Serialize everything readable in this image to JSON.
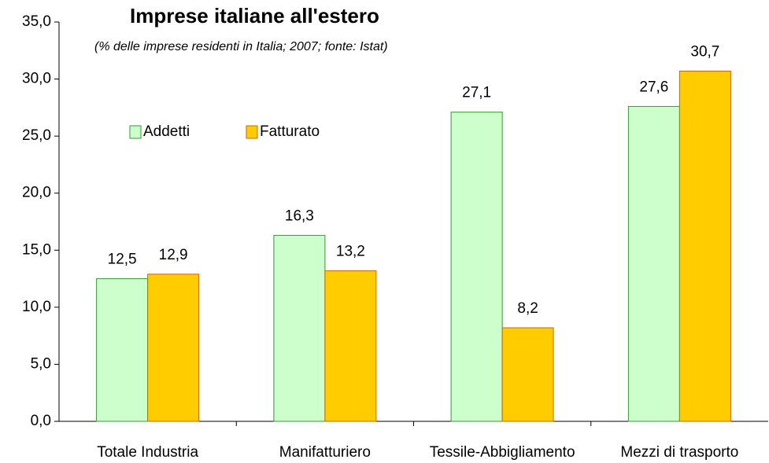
{
  "chart_data": {
    "type": "bar",
    "title": "Imprese italiane all'estero",
    "subtitle": "(% delle imprese residenti in Italia; 2007; fonte: Istat)",
    "categories": [
      "Totale Industria",
      "Manifatturiero",
      "Tessile-Abbigliamento",
      "Mezzi di trasporto"
    ],
    "series": [
      {
        "name": "Addetti",
        "color": "#ccffcc",
        "values": [
          12.5,
          16.3,
          27.1,
          27.6
        ],
        "value_labels": [
          "12,5",
          "16,3",
          "27,1",
          "27,6"
        ]
      },
      {
        "name": "Fatturato",
        "color": "#ffcc00",
        "values": [
          12.9,
          13.2,
          8.2,
          30.7
        ],
        "value_labels": [
          "12,9",
          "13,2",
          "8,2",
          "30,7"
        ]
      }
    ],
    "ylim": [
      0,
      35
    ],
    "yticks": [
      {
        "value": 0,
        "label": "0,0"
      },
      {
        "value": 5,
        "label": "5,0"
      },
      {
        "value": 10,
        "label": "10,0"
      },
      {
        "value": 15,
        "label": "15,0"
      },
      {
        "value": 20,
        "label": "20,0"
      },
      {
        "value": 25,
        "label": "25,0"
      },
      {
        "value": 30,
        "label": "30,0"
      },
      {
        "value": 35,
        "label": "35,0"
      }
    ],
    "grid": false,
    "legend": "upper left"
  }
}
